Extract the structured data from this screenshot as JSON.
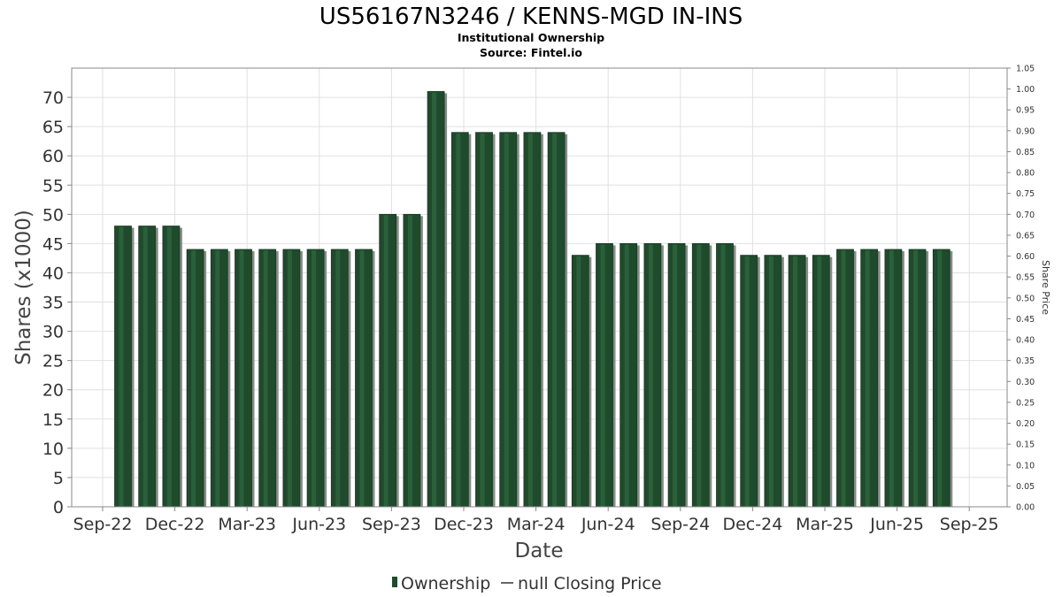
{
  "chart_data": {
    "type": "bar",
    "title": "US56167N3246 / KENNS-MGD IN-INS",
    "subtitle_lines": [
      "Institutional Ownership",
      "Source: Fintel.io"
    ],
    "xlabel": "Date",
    "ylabel": "Shares (x1000)",
    "ylabel_right": "Share Price",
    "ylim": [
      0,
      75
    ],
    "ylim_right": [
      0,
      1.05
    ],
    "y_ticks": [
      0,
      5,
      10,
      15,
      20,
      25,
      30,
      35,
      40,
      45,
      50,
      55,
      60,
      65,
      70
    ],
    "y_ticks_right": [
      "0.00",
      "0.05",
      "0.10",
      "0.15",
      "0.20",
      "0.25",
      "0.30",
      "0.35",
      "0.40",
      "0.45",
      "0.50",
      "0.55",
      "0.60",
      "0.65",
      "0.70",
      "0.75",
      "0.80",
      "0.85",
      "0.90",
      "0.95",
      "1.00",
      "1.05"
    ],
    "x_tick_labels": [
      "Sep-22",
      "Dec-22",
      "Mar-23",
      "Jun-23",
      "Sep-23",
      "Dec-23",
      "Mar-24",
      "Jun-24",
      "Sep-24",
      "Dec-24",
      "Mar-25",
      "Jun-25",
      "Sep-25"
    ],
    "grid": true,
    "legend_position": "bottom",
    "legend": [
      "Ownership",
      "null Closing Price"
    ],
    "colors": {
      "bar": "#1f4a2c",
      "bar_highlight": "#2f6a40",
      "bar_shadow": "#8a8a8a",
      "grid": "#e0e0e0",
      "plot_border": "#888888"
    },
    "series": [
      {
        "name": "Ownership",
        "values": [
          48,
          48,
          48,
          44,
          44,
          44,
          44,
          44,
          44,
          44,
          44,
          50,
          50,
          71,
          64,
          64,
          64,
          64,
          64,
          43,
          45,
          45,
          45,
          45,
          45,
          45,
          43,
          43,
          43,
          43,
          44,
          44,
          44,
          44,
          44
        ]
      }
    ]
  }
}
